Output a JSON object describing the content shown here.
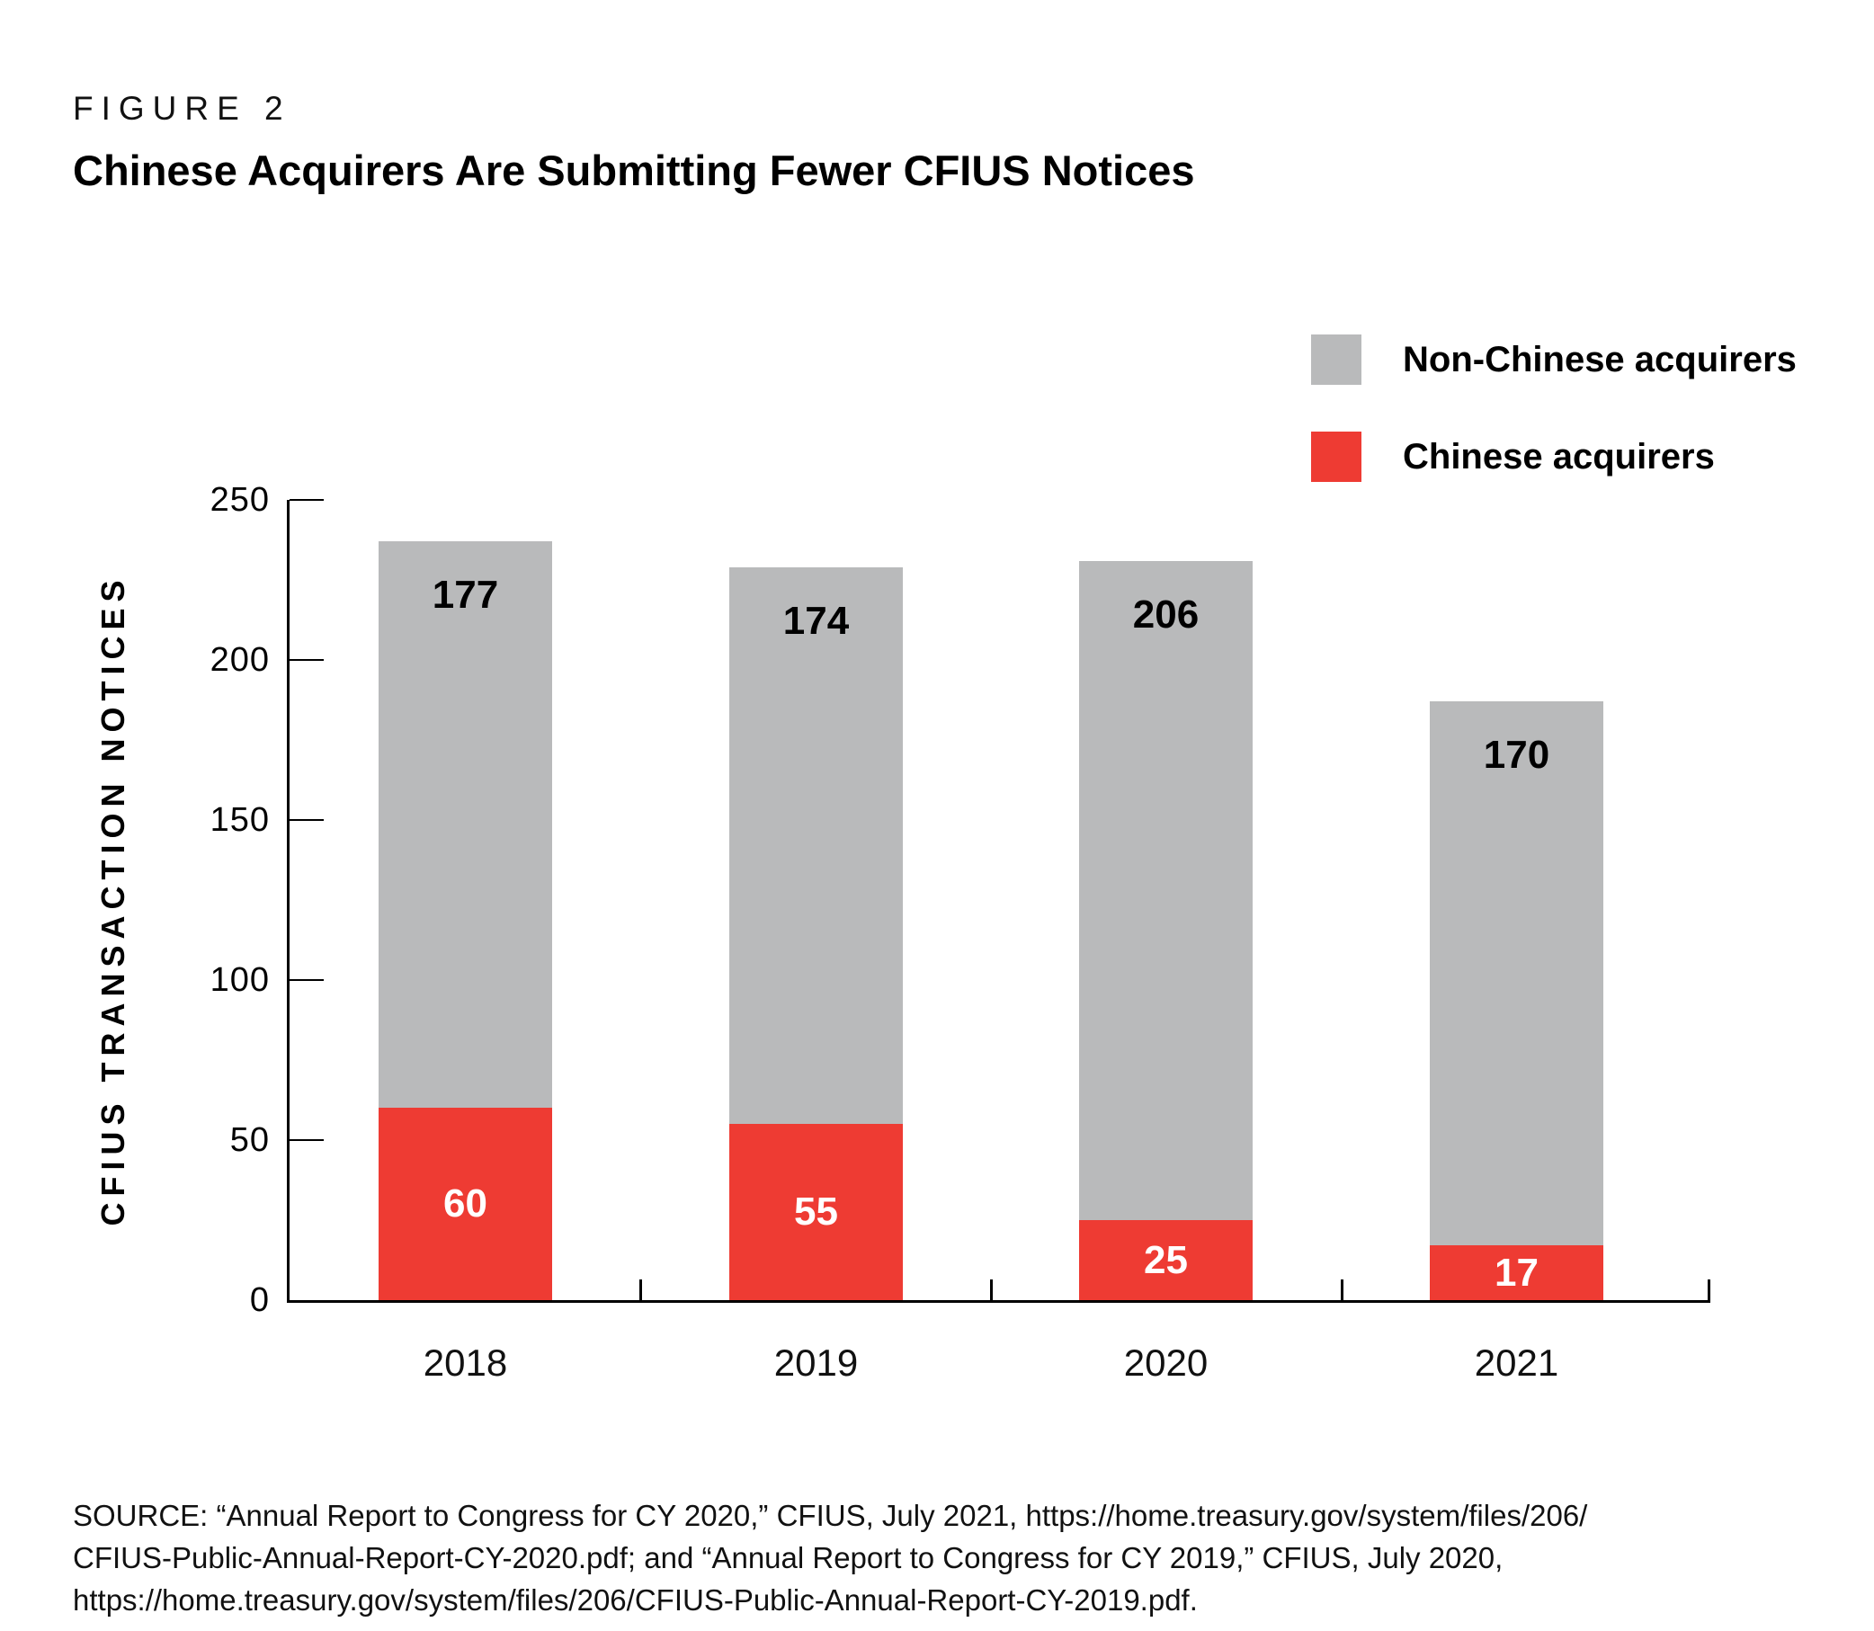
{
  "header": {
    "figure_label": "FIGURE 2",
    "title": "Chinese Acquirers Are Submitting Fewer CFIUS Notices"
  },
  "legend": {
    "items": [
      {
        "label": "Non-Chinese acquirers",
        "color": "#B9BABB"
      },
      {
        "label": "Chinese acquirers",
        "color": "#EE3B33"
      }
    ]
  },
  "chart_data": {
    "type": "bar",
    "stacked": true,
    "title": "Chinese Acquirers Are Submitting Fewer CFIUS Notices",
    "categories": [
      "2018",
      "2019",
      "2020",
      "2021"
    ],
    "series": [
      {
        "name": "Chinese acquirers",
        "color": "#EE3B33",
        "label_color": "#FFFFFF",
        "values": [
          60,
          55,
          25,
          17
        ]
      },
      {
        "name": "Non-Chinese acquirers",
        "color": "#B9BABB",
        "label_color": "#000000",
        "values": [
          177,
          174,
          206,
          170
        ]
      }
    ],
    "totals": [
      237,
      229,
      231,
      187
    ],
    "xlabel": "",
    "ylabel": "CFIUS TRANSACTION NOTICES",
    "ylim": [
      0,
      250
    ],
    "y_ticks": [
      250,
      200,
      150,
      100,
      50,
      0
    ],
    "grid": false,
    "legend_position": "top-right"
  },
  "source": {
    "lines": [
      "SOURCE: “Annual Report to Congress for CY 2020,” CFIUS, July 2021, https://home.treasury.gov/system/files/206/",
      "CFIUS-Public-Annual-Report-CY-2020.pdf; and “Annual Report to Congress for CY 2019,” CFIUS, July 2020,",
      "https://home.treasury.gov/system/files/206/CFIUS-Public-Annual-Report-CY-2019.pdf."
    ]
  }
}
